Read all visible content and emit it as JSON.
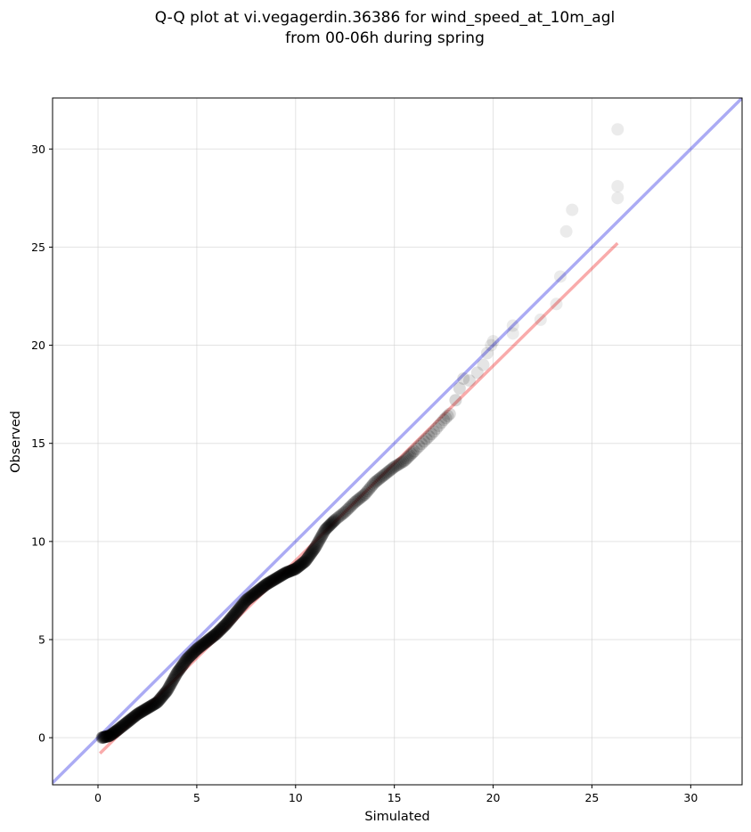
{
  "chart_data": {
    "type": "scatter",
    "title_line1": "Q-Q plot at vi.vegagerdin.36386 for wind_speed_at_10m_agl",
    "title_line2": "from 00-06h during spring",
    "xlabel": "Simulated",
    "ylabel": "Observed",
    "xlim": [
      -2.3,
      32.6
    ],
    "ylim": [
      -2.4,
      32.6
    ],
    "xticks": [
      0,
      5,
      10,
      15,
      20,
      25,
      30
    ],
    "yticks": [
      0,
      5,
      10,
      15,
      20,
      25,
      30
    ],
    "grid": true,
    "colors": {
      "points": "#000000",
      "identity_line": "#0000dd",
      "fit_line": "#ee0000",
      "grid": "#cccccc"
    },
    "identity_line": {
      "x": [
        -2.3,
        32.6
      ],
      "y": [
        -2.3,
        32.6
      ]
    },
    "fit_line": {
      "x": [
        0.1,
        26.3
      ],
      "y": [
        -0.8,
        25.2
      ]
    },
    "quantile_curve": [
      [
        0.2,
        0.0
      ],
      [
        0.6,
        0.1
      ],
      [
        1.0,
        0.4
      ],
      [
        1.5,
        0.8
      ],
      [
        2.0,
        1.2
      ],
      [
        2.5,
        1.5
      ],
      [
        3.0,
        1.8
      ],
      [
        3.5,
        2.4
      ],
      [
        4.0,
        3.3
      ],
      [
        4.5,
        4.0
      ],
      [
        5.0,
        4.5
      ],
      [
        5.5,
        4.9
      ],
      [
        6.0,
        5.3
      ],
      [
        6.5,
        5.8
      ],
      [
        7.0,
        6.4
      ],
      [
        7.5,
        7.0
      ],
      [
        8.0,
        7.4
      ],
      [
        8.5,
        7.8
      ],
      [
        9.0,
        8.1
      ],
      [
        9.5,
        8.4
      ],
      [
        10.0,
        8.6
      ],
      [
        10.5,
        9.0
      ],
      [
        11.0,
        9.7
      ],
      [
        11.5,
        10.6
      ],
      [
        12.0,
        11.1
      ],
      [
        12.5,
        11.5
      ],
      [
        13.0,
        12.0
      ],
      [
        13.5,
        12.4
      ],
      [
        14.0,
        13.0
      ],
      [
        14.5,
        13.4
      ],
      [
        15.0,
        13.8
      ],
      [
        15.5,
        14.1
      ],
      [
        16.0,
        14.6
      ],
      [
        16.5,
        15.1
      ],
      [
        17.0,
        15.6
      ],
      [
        17.5,
        16.2
      ],
      [
        17.9,
        16.6
      ]
    ],
    "tail_points": [
      {
        "x": 18.1,
        "y": 17.2,
        "o": 0.16
      },
      {
        "x": 18.3,
        "y": 17.8,
        "o": 0.14
      },
      {
        "x": 18.5,
        "y": 18.3,
        "o": 0.12
      },
      {
        "x": 18.8,
        "y": 18.2,
        "o": 0.12
      },
      {
        "x": 19.2,
        "y": 18.6,
        "o": 0.11
      },
      {
        "x": 19.5,
        "y": 19.0,
        "o": 0.1
      },
      {
        "x": 19.7,
        "y": 19.6,
        "o": 0.1
      },
      {
        "x": 19.9,
        "y": 20.0,
        "o": 0.09
      },
      {
        "x": 20.0,
        "y": 20.2,
        "o": 0.09
      },
      {
        "x": 21.0,
        "y": 20.6,
        "o": 0.08
      },
      {
        "x": 21.0,
        "y": 21.0,
        "o": 0.08
      },
      {
        "x": 22.4,
        "y": 21.3,
        "o": 0.08
      },
      {
        "x": 23.2,
        "y": 22.1,
        "o": 0.08
      },
      {
        "x": 23.4,
        "y": 23.5,
        "o": 0.08
      },
      {
        "x": 23.7,
        "y": 25.8,
        "o": 0.08
      },
      {
        "x": 24.0,
        "y": 26.9,
        "o": 0.08
      },
      {
        "x": 26.3,
        "y": 27.5,
        "o": 0.08
      },
      {
        "x": 26.3,
        "y": 28.1,
        "o": 0.08
      },
      {
        "x": 26.3,
        "y": 31.0,
        "o": 0.08
      }
    ]
  }
}
